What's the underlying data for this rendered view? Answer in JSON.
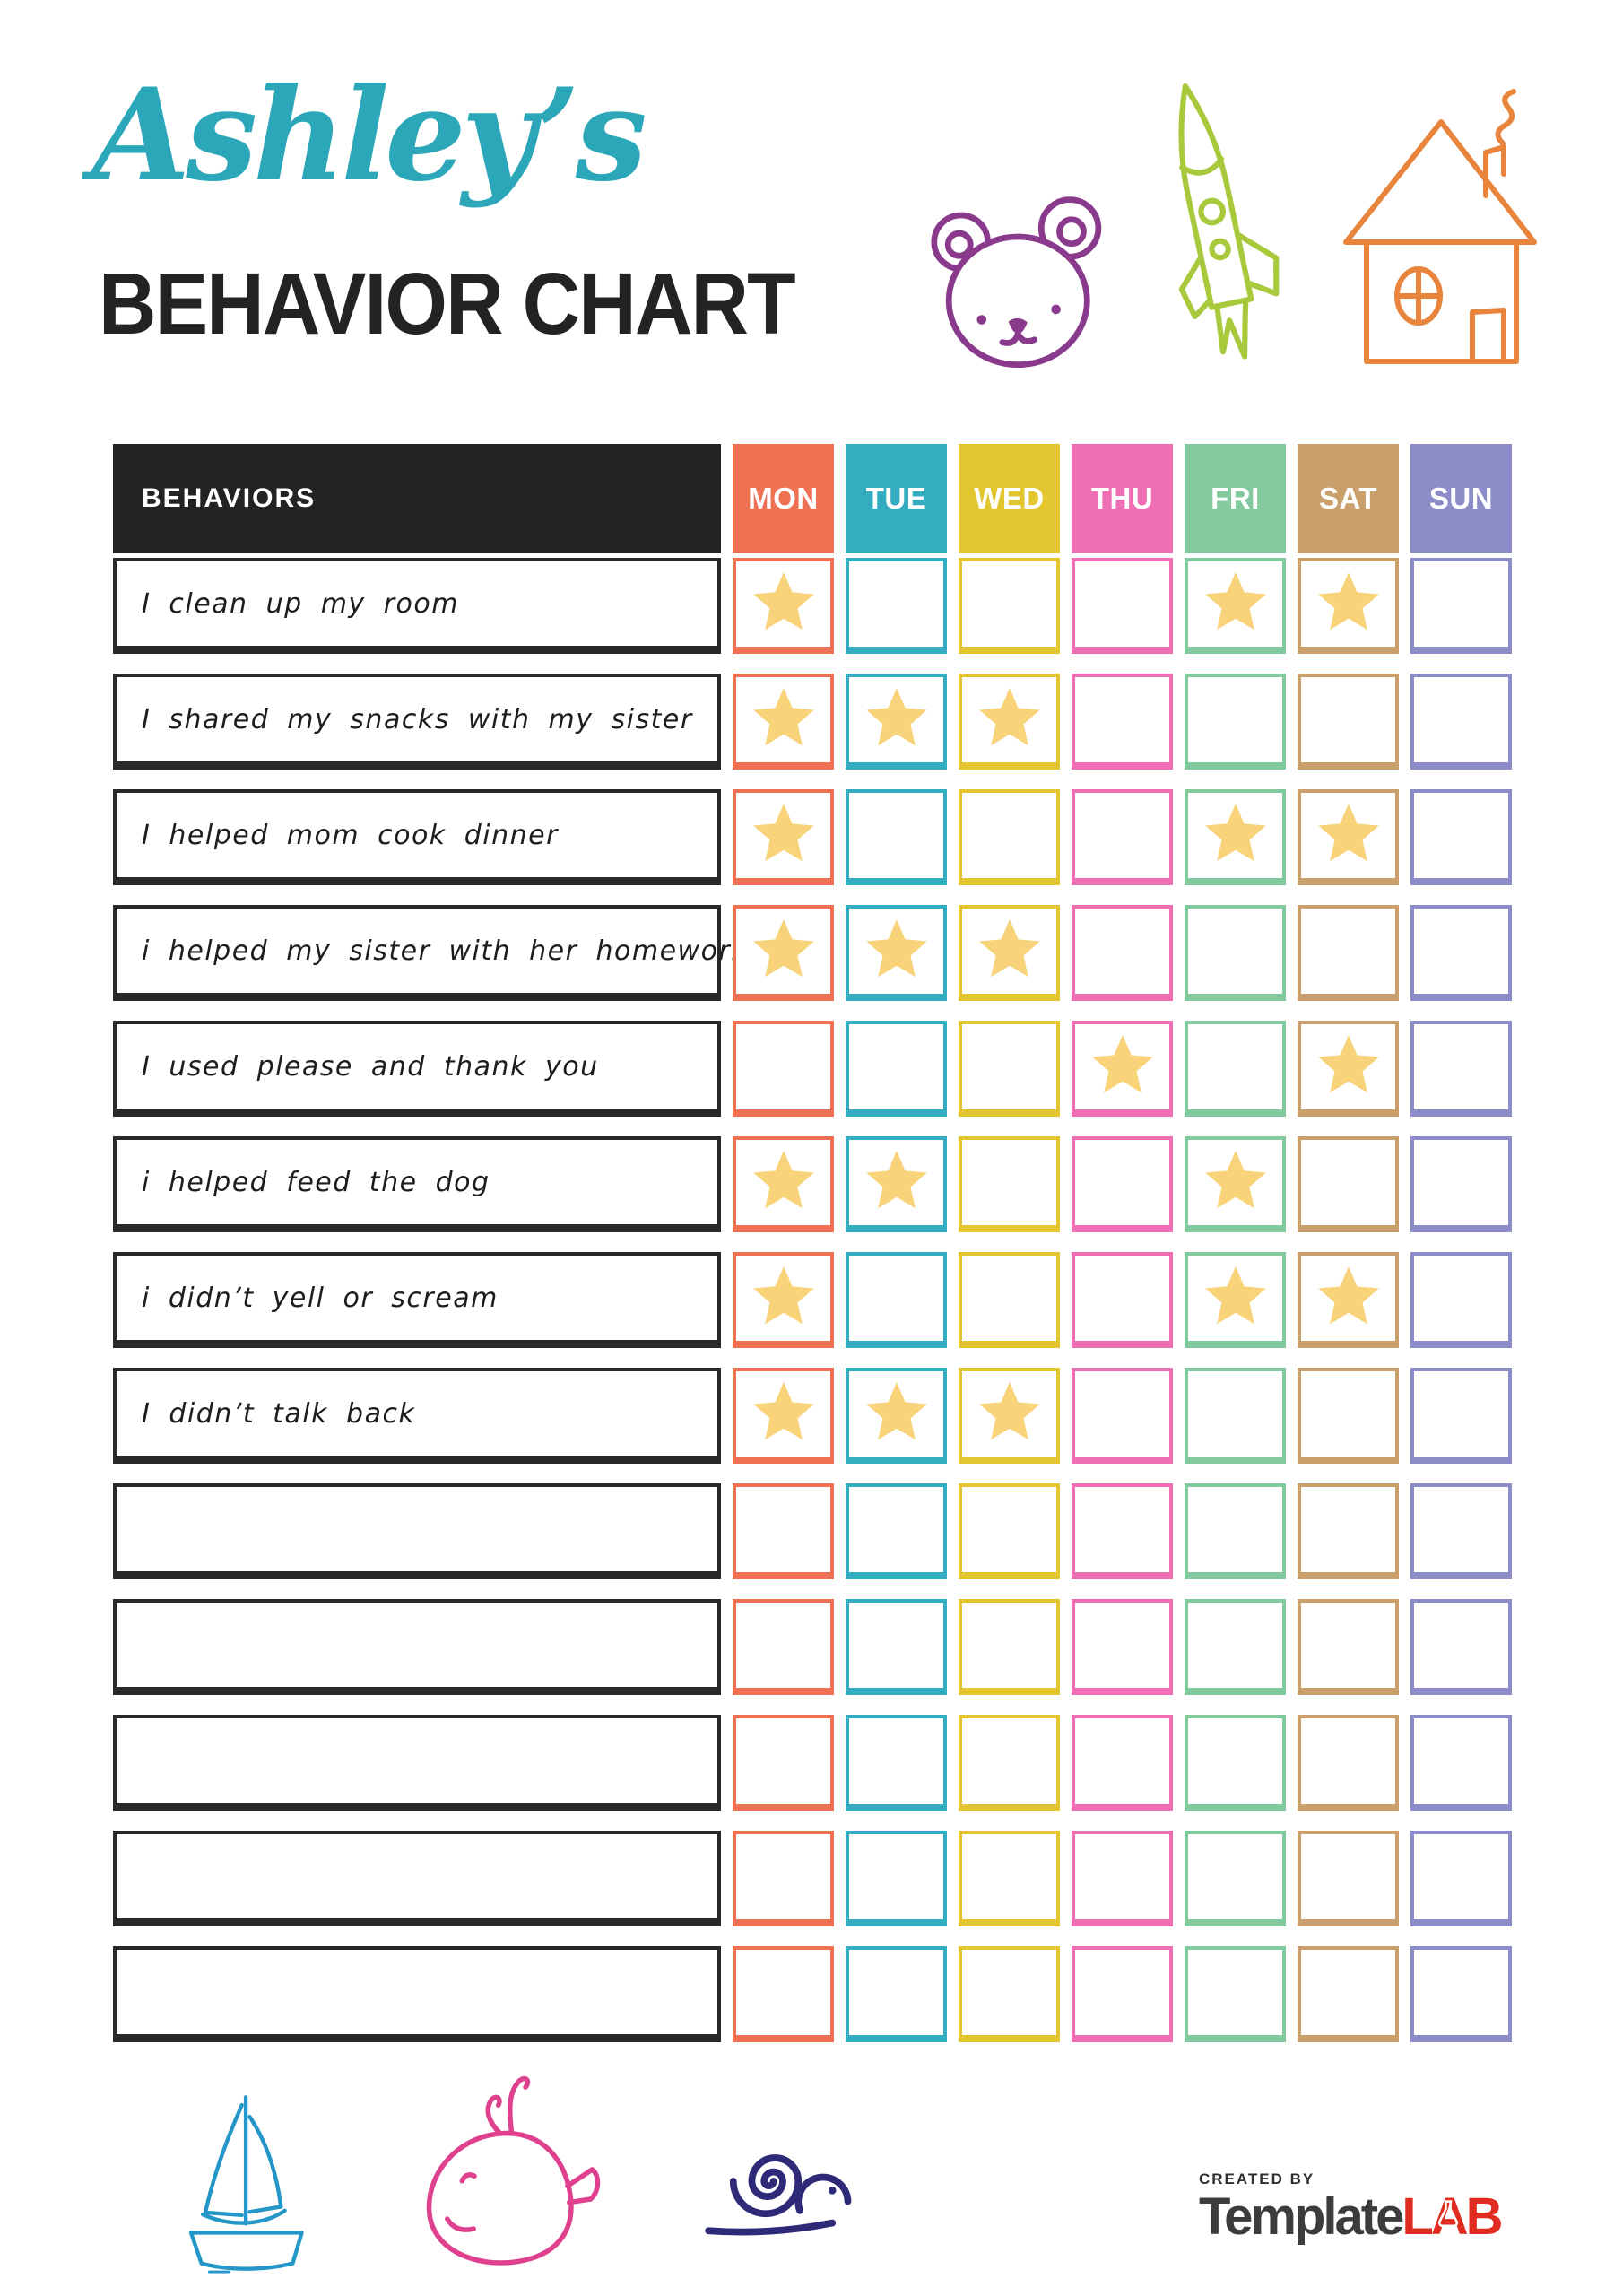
{
  "header": {
    "script_title": "Ashley’s",
    "main_title": "BEHAVIOR CHART"
  },
  "table": {
    "behaviors_header": "BEHAVIORS",
    "header_bg": "#232326",
    "star_color": "#f8d37a",
    "days": [
      {
        "label": "MON",
        "color": "#ee7153"
      },
      {
        "label": "TUE",
        "color": "#34adc1"
      },
      {
        "label": "WED",
        "color": "#e2c52f"
      },
      {
        "label": "THU",
        "color": "#ef6fb4"
      },
      {
        "label": "FRI",
        "color": "#82c99d"
      },
      {
        "label": "SAT",
        "color": "#c9a06c"
      },
      {
        "label": "SUN",
        "color": "#8c8cc8"
      }
    ],
    "rows": [
      {
        "label": "I clean up my room",
        "stars": [
          1,
          0,
          0,
          0,
          1,
          1,
          0
        ]
      },
      {
        "label": "I shared my snacks with my sister",
        "stars": [
          1,
          1,
          1,
          0,
          0,
          0,
          0
        ]
      },
      {
        "label": "I helped mom cook dinner",
        "stars": [
          1,
          0,
          0,
          0,
          1,
          1,
          0
        ]
      },
      {
        "label": "i helped my sister with her homework",
        "stars": [
          1,
          1,
          1,
          0,
          0,
          0,
          0
        ]
      },
      {
        "label": "I used please and thank you",
        "stars": [
          0,
          0,
          0,
          1,
          0,
          1,
          0
        ]
      },
      {
        "label": "i helped feed the dog",
        "stars": [
          1,
          1,
          0,
          0,
          1,
          0,
          0
        ]
      },
      {
        "label": "i didn’t yell or scream",
        "stars": [
          1,
          0,
          0,
          0,
          1,
          1,
          0
        ]
      },
      {
        "label": "I didn’t talk back",
        "stars": [
          1,
          1,
          1,
          0,
          0,
          0,
          0
        ]
      },
      {
        "label": "",
        "stars": [
          0,
          0,
          0,
          0,
          0,
          0,
          0
        ]
      },
      {
        "label": "",
        "stars": [
          0,
          0,
          0,
          0,
          0,
          0,
          0
        ]
      },
      {
        "label": "",
        "stars": [
          0,
          0,
          0,
          0,
          0,
          0,
          0
        ]
      },
      {
        "label": "",
        "stars": [
          0,
          0,
          0,
          0,
          0,
          0,
          0
        ]
      },
      {
        "label": "",
        "stars": [
          0,
          0,
          0,
          0,
          0,
          0,
          0
        ]
      }
    ]
  },
  "footer": {
    "created_by": "CREATED BY",
    "brand_dark": "Template",
    "brand_red": "LAB"
  },
  "colors": {
    "accent_teal": "#2ba7b9",
    "title_dark": "#232326",
    "bear_purple": "#8a3a8c",
    "rocket_green": "#a8c93c",
    "house_orange": "#e8843c",
    "boat_blue": "#2496c8",
    "whale_pink": "#e0418f",
    "snail_navy": "#2e2a78",
    "brand_red_color": "#e02b20"
  }
}
